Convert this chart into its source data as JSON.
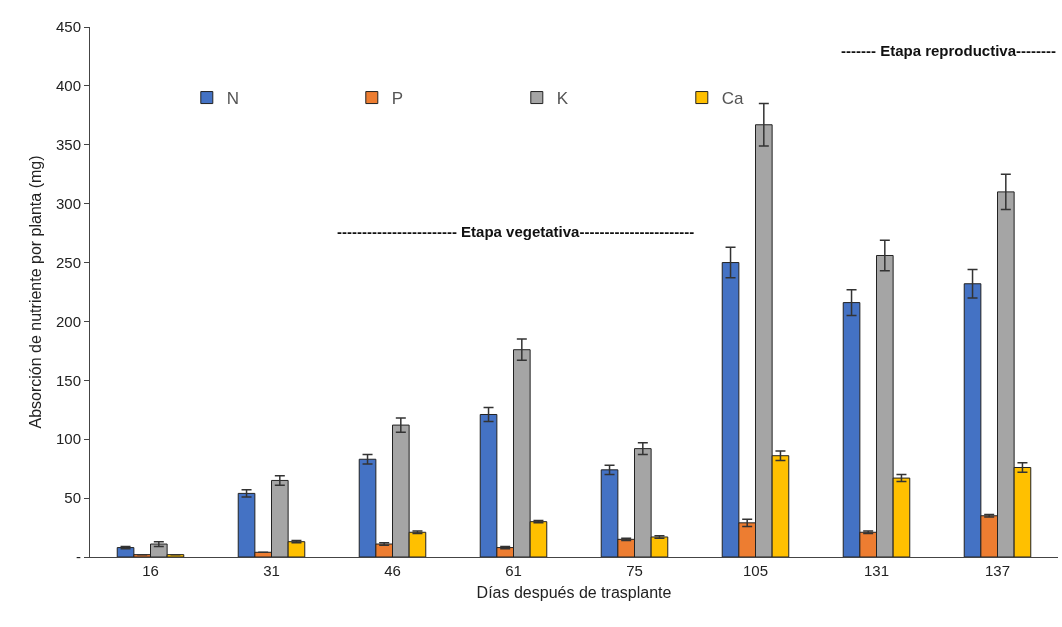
{
  "chart_data": {
    "type": "bar",
    "xlabel": "Días después de trasplante",
    "ylabel": "Absorción de nutriente por planta (mg)",
    "categories": [
      "16",
      "31",
      "46",
      "61",
      "75",
      "105",
      "131",
      "137"
    ],
    "series": [
      {
        "name": "N",
        "color": "#4472c4",
        "values": [
          8,
          54,
          83,
          121,
          74,
          250,
          216,
          232
        ],
        "errors": [
          1,
          3,
          4,
          6,
          4,
          13,
          11,
          12
        ]
      },
      {
        "name": "P",
        "color": "#ed7d31",
        "values": [
          2,
          4,
          11,
          8,
          15,
          29,
          21,
          35
        ],
        "errors": [
          null,
          null,
          1,
          1,
          1,
          3,
          1,
          1
        ]
      },
      {
        "name": "K",
        "color": "#a5a5a5",
        "values": [
          11,
          65,
          112,
          176,
          92,
          367,
          256,
          310
        ],
        "errors": [
          2,
          4,
          6,
          9,
          5,
          18,
          13,
          15
        ]
      },
      {
        "name": "Ca",
        "color": "#ffc000",
        "values": [
          2,
          13,
          21,
          30,
          17,
          86,
          67,
          76
        ],
        "errors": [
          null,
          1,
          1,
          1,
          1,
          4,
          3,
          4
        ]
      }
    ],
    "ylim": [
      0,
      450
    ],
    "yticks": [
      {
        "value": 0,
        "label": "-"
      },
      50,
      100,
      150,
      200,
      250,
      300,
      350,
      400,
      450
    ],
    "grid": false,
    "legend": "top left",
    "annotations": [
      "------------------------ Etapa vegetativa-----------------------",
      "------- Etapa reproductiva--------"
    ]
  }
}
